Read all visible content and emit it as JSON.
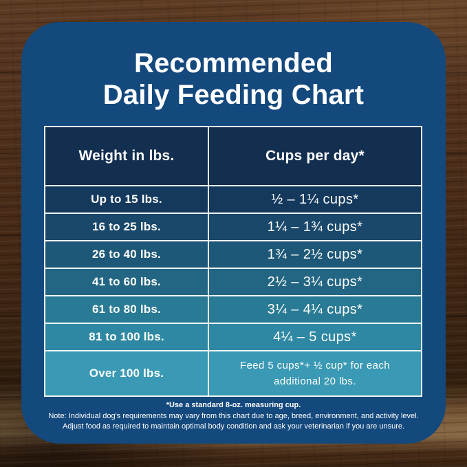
{
  "chart_data": {
    "type": "table",
    "title": "Recommended Daily Feeding Chart",
    "title_lines": [
      "Recommended",
      "Daily Feeding Chart"
    ],
    "columns": [
      "Weight in lbs.",
      "Cups per day*"
    ],
    "rows": [
      {
        "weight": "Up to 15 lbs.",
        "cups": "½ – 1¼ cups*"
      },
      {
        "weight": "16 to 25 lbs.",
        "cups": "1¼ – 1¾ cups*"
      },
      {
        "weight": "26 to 40 lbs.",
        "cups": "1¾ – 2½ cups*"
      },
      {
        "weight": "41 to 60 lbs.",
        "cups": "2½ – 3¼ cups*"
      },
      {
        "weight": "61 to 80 lbs.",
        "cups": "3¼ – 4¼ cups*"
      },
      {
        "weight": "81 to 100 lbs.",
        "cups": "4¼ – 5 cups*"
      },
      {
        "weight": "Over 100 lbs.",
        "cups": "Feed 5 cups*+ ½ cup* for each additional 20 lbs."
      }
    ],
    "footnotes": [
      "*Use a standard 8-oz. measuring cup.",
      "Note: Individual dog's requirements may vary from this chart due to age, breed, environment, and activity level.",
      "Adjust food as required to maintain optimal body condition and ask your veterinarian if you are unsure."
    ]
  },
  "colors": {
    "card_bg": "#14497d",
    "header_bg": "#132f50",
    "row_colors": [
      "#15395d",
      "#19486b",
      "#1e5878",
      "#236684",
      "#297a94",
      "#2f88a3",
      "#3a99b4"
    ],
    "table_border": "#f3f7f9",
    "text": "#ffffff"
  }
}
